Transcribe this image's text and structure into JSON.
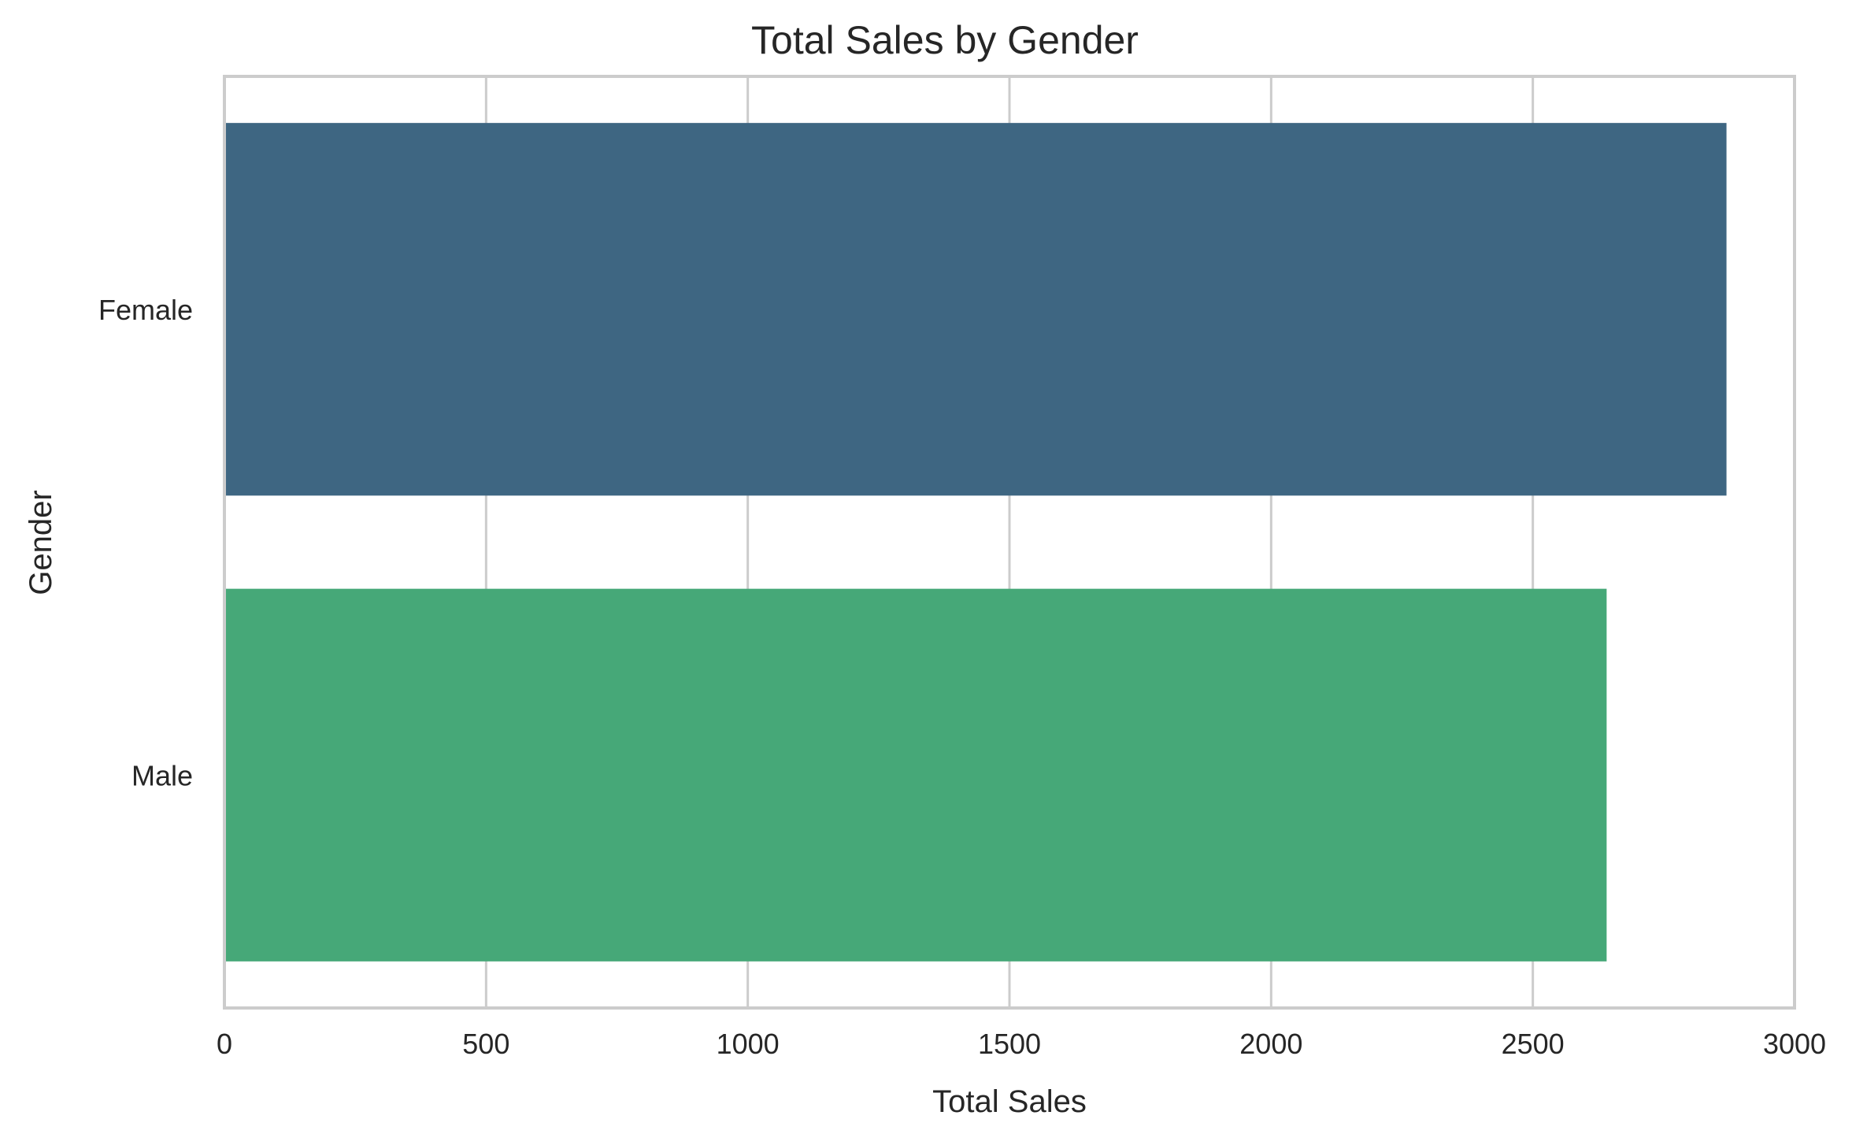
{
  "chart_data": {
    "type": "bar",
    "orientation": "horizontal",
    "title": "Total Sales by Gender",
    "xlabel": "Total Sales",
    "ylabel": "Gender",
    "categories": [
      "Female",
      "Male"
    ],
    "values": [
      2870,
      2641
    ],
    "colors": [
      "#3e6682",
      "#46a878"
    ],
    "xlim": [
      0,
      3000
    ],
    "xticks": [
      0,
      500,
      1000,
      1500,
      2000,
      2500,
      3000
    ],
    "grid": true,
    "legend": "none"
  }
}
